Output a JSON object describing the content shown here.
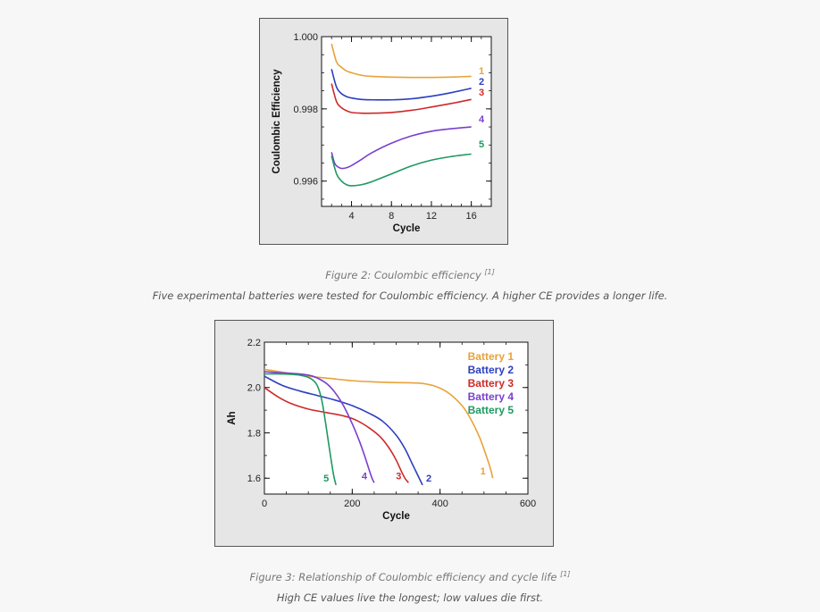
{
  "figures": [
    {
      "caption": "Figure 2: Coulombic efficiency",
      "caption_ref": "[1]",
      "description": "Five experimental batteries were tested for Coulombic efficiency. A higher CE provides a longer life."
    },
    {
      "caption": "Figure 3: Relationship of Coulombic efficiency and cycle life",
      "caption_ref": "[1]",
      "description": "High CE values live the longest; low values die first."
    }
  ],
  "chart_data": [
    {
      "type": "line",
      "title": "",
      "xlabel": "Cycle",
      "ylabel": "Coulombic Efficiency",
      "xlim": [
        1,
        18
      ],
      "ylim": [
        0.9953,
        1.0
      ],
      "xticks": [
        4,
        8,
        12,
        16
      ],
      "yticks": [
        0.996,
        0.998,
        1.0
      ],
      "ytick_labels": [
        "0.996",
        "0.998",
        "1.000"
      ],
      "grid": false,
      "series": [
        {
          "name": "1",
          "color": "#e8a23a",
          "x": [
            2,
            2.5,
            3,
            3.5,
            4,
            5,
            6,
            8,
            10,
            12,
            14,
            16
          ],
          "y": [
            0.9998,
            0.9993,
            0.99915,
            0.99905,
            0.999,
            0.99893,
            0.9989,
            0.99888,
            0.99887,
            0.99887,
            0.99888,
            0.9989
          ]
        },
        {
          "name": "2",
          "color": "#2d3fbf",
          "x": [
            2,
            2.5,
            3,
            3.5,
            4,
            5,
            6,
            8,
            10,
            12,
            14,
            16
          ],
          "y": [
            0.9991,
            0.9986,
            0.99842,
            0.99834,
            0.9983,
            0.99826,
            0.99825,
            0.99825,
            0.99828,
            0.99835,
            0.99845,
            0.99857
          ]
        },
        {
          "name": "3",
          "color": "#cc2a2a",
          "x": [
            2,
            2.5,
            3,
            3.5,
            4,
            5,
            6,
            8,
            10,
            12,
            14,
            16
          ],
          "y": [
            0.9987,
            0.9982,
            0.99803,
            0.99795,
            0.9979,
            0.99788,
            0.99788,
            0.9979,
            0.99796,
            0.99805,
            0.99815,
            0.99826
          ]
        },
        {
          "name": "4",
          "color": "#7a3fcf",
          "x": [
            2,
            2.3,
            2.6,
            3,
            3.5,
            4,
            5,
            6,
            8,
            10,
            12,
            14,
            16
          ],
          "y": [
            0.9968,
            0.9965,
            0.9964,
            0.99635,
            0.99637,
            0.99643,
            0.9966,
            0.99678,
            0.99705,
            0.99725,
            0.99738,
            0.99745,
            0.9975
          ]
        },
        {
          "name": "5",
          "color": "#1e9960",
          "x": [
            2,
            2.5,
            3,
            3.5,
            4,
            5,
            6,
            8,
            10,
            12,
            14,
            16
          ],
          "y": [
            0.9967,
            0.9962,
            0.996,
            0.9959,
            0.99587,
            0.9959,
            0.99598,
            0.9962,
            0.99642,
            0.99658,
            0.99668,
            0.99675
          ]
        }
      ]
    },
    {
      "type": "line",
      "title": "",
      "xlabel": "Cycle",
      "ylabel": "Ah",
      "xlim": [
        0,
        600
      ],
      "ylim": [
        1.53,
        2.2
      ],
      "xticks": [
        0,
        200,
        400,
        600
      ],
      "yticks": [
        1.6,
        1.8,
        2.0,
        2.2
      ],
      "ytick_labels": [
        "1.6",
        "1.8",
        "2.0",
        "2.2"
      ],
      "grid": false,
      "legend": "top-right",
      "legend_entries": [
        "Battery 1",
        "Battery 2",
        "Battery 3",
        "Battery 4",
        "Battery 5"
      ],
      "series": [
        {
          "name": "Battery 1",
          "end_label": "1",
          "color": "#e8a23a",
          "x": [
            0,
            50,
            100,
            150,
            200,
            250,
            300,
            330,
            360,
            390,
            420,
            450,
            470,
            490,
            505,
            515,
            520
          ],
          "y": [
            2.08,
            2.065,
            2.05,
            2.04,
            2.03,
            2.025,
            2.022,
            2.021,
            2.018,
            2.005,
            1.975,
            1.92,
            1.86,
            1.78,
            1.7,
            1.64,
            1.6
          ]
        },
        {
          "name": "Battery 2",
          "end_label": "2",
          "color": "#2d3fbf",
          "x": [
            0,
            40,
            80,
            120,
            160,
            200,
            240,
            270,
            300,
            320,
            335,
            345,
            355,
            360
          ],
          "y": [
            2.05,
            2.01,
            1.985,
            1.965,
            1.945,
            1.92,
            1.885,
            1.85,
            1.79,
            1.73,
            1.67,
            1.63,
            1.59,
            1.57
          ]
        },
        {
          "name": "Battery 3",
          "end_label": "3",
          "color": "#cc2a2a",
          "x": [
            0,
            30,
            60,
            100,
            140,
            180,
            210,
            240,
            265,
            285,
            300,
            312,
            320,
            328
          ],
          "y": [
            2.0,
            1.96,
            1.93,
            1.905,
            1.89,
            1.875,
            1.855,
            1.82,
            1.78,
            1.73,
            1.68,
            1.63,
            1.6,
            1.58
          ]
        },
        {
          "name": "Battery 4",
          "end_label": "4",
          "color": "#7a3fcf",
          "x": [
            0,
            40,
            80,
            110,
            140,
            160,
            180,
            200,
            215,
            228,
            238,
            245,
            250
          ],
          "y": [
            2.07,
            2.065,
            2.06,
            2.05,
            2.02,
            1.98,
            1.92,
            1.84,
            1.77,
            1.7,
            1.64,
            1.6,
            1.58
          ]
        },
        {
          "name": "Battery 5",
          "end_label": "5",
          "color": "#1e9960",
          "x": [
            0,
            40,
            80,
            105,
            120,
            130,
            138,
            145,
            152,
            158,
            163
          ],
          "y": [
            2.06,
            2.06,
            2.055,
            2.04,
            2.01,
            1.95,
            1.86,
            1.77,
            1.68,
            1.61,
            1.57
          ]
        }
      ]
    }
  ]
}
